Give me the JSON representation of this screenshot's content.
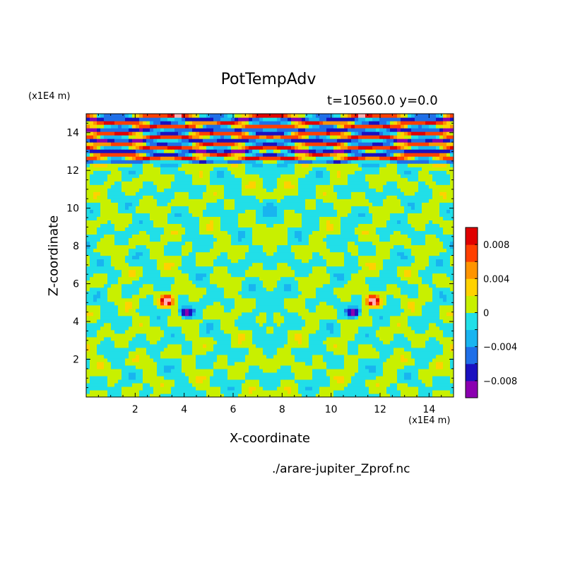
{
  "chart_data": {
    "type": "heatmap",
    "title": "PotTempAdv",
    "subtitle": "t=10560.0 y=0.0",
    "xlabel": "X-coordinate",
    "ylabel": "Z-coordinate",
    "x_unit": "(x1E4 m)",
    "z_unit": "(x1E4 m)",
    "xlim": [
      0,
      15
    ],
    "ylim": [
      0,
      15
    ],
    "x_ticks": [
      "2",
      "4",
      "6",
      "8",
      "10",
      "12",
      "14"
    ],
    "y_ticks": [
      "2",
      "4",
      "6",
      "8",
      "10",
      "12",
      "14"
    ],
    "colorbar": {
      "levels": [
        -0.01,
        -0.008,
        -0.006,
        -0.004,
        -0.002,
        0,
        0.002,
        0.004,
        0.006,
        0.008,
        0.01
      ],
      "colors": [
        "#8b00b0",
        "#1a10c0",
        "#1f6fe8",
        "#18b4f0",
        "#21dfe8",
        "#c8f000",
        "#ffd200",
        "#ff9400",
        "#ff3f00",
        "#e00000",
        "#ffb0b0"
      ],
      "tick_labels": [
        "0.008",
        "0.004",
        "0",
        "−0.004",
        "−0.008"
      ],
      "tick_values": [
        0.008,
        0.004,
        0,
        -0.004,
        -0.008
      ],
      "placement": "right"
    },
    "background_band": "z 0 to 12.2 mostly between -0.002 and 0.002; strong alternating bands near z = 12.5 to 14.5",
    "source_file": "./arare-jupiter_Zprof.nc"
  },
  "header": {
    "title": "PotTempAdv",
    "time_label": "t=10560.0 y=0.0"
  },
  "axes": {
    "x_label": "X-coordinate",
    "y_label": "Z-coordinate",
    "x_unit": "(x1E4 m)",
    "z_unit": "(x1E4 m)"
  },
  "footer": {
    "source": "./arare-jupiter_Zprof.nc"
  }
}
